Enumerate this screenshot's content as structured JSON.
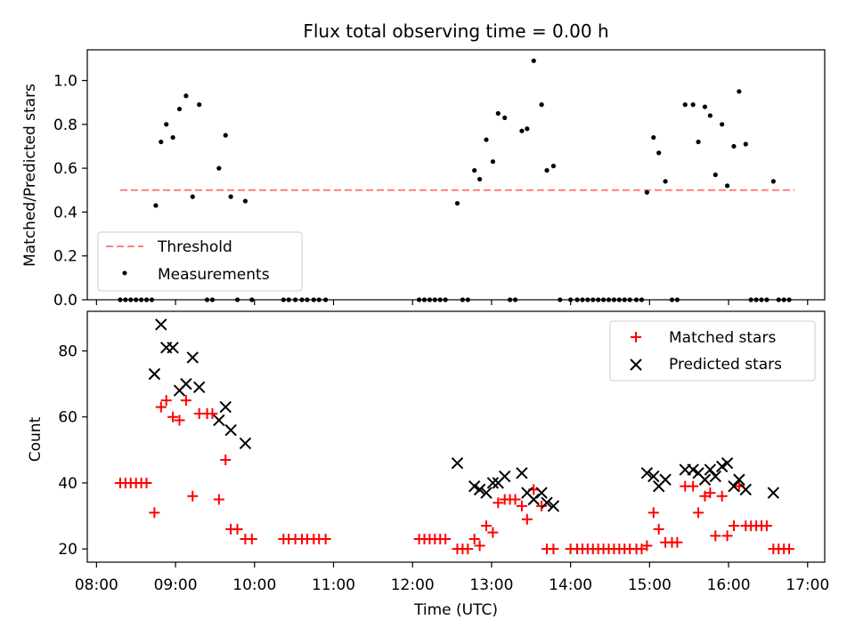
{
  "figure": {
    "title": "Flux total observing time = 0.00 h",
    "xlabel": "Time (UTC)",
    "x_tick_labels": [
      "08:00",
      "09:00",
      "10:00",
      "11:00",
      "12:00",
      "13:00",
      "14:00",
      "15:00",
      "16:00",
      "17:00"
    ]
  },
  "chart_data": [
    {
      "type": "scatter",
      "ylabel": "Matched/Predicted stars",
      "xlim": [
        "07:53",
        "17:13"
      ],
      "ylim": [
        0,
        1.14
      ],
      "y_ticks": [
        0,
        0.2,
        0.4,
        0.6,
        0.8,
        1.0
      ],
      "y_tick_labels": [
        "0.0",
        "0.2",
        "0.4",
        "0.6",
        "0.8",
        "1.0"
      ],
      "legend_position": "lower-left",
      "colors": {
        "threshold": "#ff7f7f",
        "measurements": "#000000"
      },
      "threshold": {
        "name": "Threshold",
        "y": 0.5,
        "x_range": [
          "08:18",
          "16:50"
        ]
      },
      "series": [
        {
          "name": "Measurements",
          "points": [
            [
              "08:18",
              0
            ],
            [
              "08:22",
              0
            ],
            [
              "08:26",
              0
            ],
            [
              "08:30",
              0
            ],
            [
              "08:34",
              0
            ],
            [
              "08:38",
              0
            ],
            [
              "08:42",
              0
            ],
            [
              "08:45",
              0.43
            ],
            [
              "08:49",
              0.72
            ],
            [
              "08:53",
              0.8
            ],
            [
              "08:58",
              0.74
            ],
            [
              "09:03",
              0.87
            ],
            [
              "09:08",
              0.93
            ],
            [
              "09:13",
              0.47
            ],
            [
              "09:18",
              0.89
            ],
            [
              "09:24",
              0
            ],
            [
              "09:28",
              0
            ],
            [
              "09:33",
              0.6
            ],
            [
              "09:38",
              0.75
            ],
            [
              "09:42",
              0.47
            ],
            [
              "09:47",
              0
            ],
            [
              "09:53",
              0.45
            ],
            [
              "09:58",
              0
            ],
            [
              "10:22",
              0
            ],
            [
              "10:26",
              0
            ],
            [
              "10:31",
              0
            ],
            [
              "10:36",
              0
            ],
            [
              "10:40",
              0
            ],
            [
              "10:45",
              0
            ],
            [
              "10:49",
              0
            ],
            [
              "10:54",
              0
            ],
            [
              "12:05",
              0
            ],
            [
              "12:09",
              0
            ],
            [
              "12:13",
              0
            ],
            [
              "12:17",
              0
            ],
            [
              "12:21",
              0
            ],
            [
              "12:25",
              0
            ],
            [
              "12:34",
              0.44
            ],
            [
              "12:38",
              0
            ],
            [
              "12:42",
              0
            ],
            [
              "12:47",
              0.59
            ],
            [
              "12:51",
              0.55
            ],
            [
              "12:56",
              0.73
            ],
            [
              "13:01",
              0.63
            ],
            [
              "13:05",
              0.85
            ],
            [
              "13:10",
              0.83
            ],
            [
              "13:14",
              0
            ],
            [
              "13:18",
              0
            ],
            [
              "13:23",
              0.77
            ],
            [
              "13:27",
              0.78
            ],
            [
              "13:32",
              1.09
            ],
            [
              "13:38",
              0.89
            ],
            [
              "13:42",
              0.59
            ],
            [
              "13:47",
              0.61
            ],
            [
              "13:52",
              0
            ],
            [
              "14:00",
              0
            ],
            [
              "14:05",
              0
            ],
            [
              "14:09",
              0
            ],
            [
              "14:13",
              0
            ],
            [
              "14:17",
              0
            ],
            [
              "14:21",
              0
            ],
            [
              "14:25",
              0
            ],
            [
              "14:29",
              0
            ],
            [
              "14:33",
              0
            ],
            [
              "14:37",
              0
            ],
            [
              "14:41",
              0
            ],
            [
              "14:45",
              0
            ],
            [
              "14:50",
              0
            ],
            [
              "14:54",
              0
            ],
            [
              "14:58",
              0.49
            ],
            [
              "15:03",
              0.74
            ],
            [
              "15:07",
              0.67
            ],
            [
              "15:12",
              0.54
            ],
            [
              "15:17",
              0
            ],
            [
              "15:21",
              0
            ],
            [
              "15:27",
              0.89
            ],
            [
              "15:33",
              0.89
            ],
            [
              "15:37",
              0.72
            ],
            [
              "15:42",
              0.88
            ],
            [
              "15:46",
              0.84
            ],
            [
              "15:50",
              0.57
            ],
            [
              "15:55",
              0.8
            ],
            [
              "15:59",
              0.52
            ],
            [
              "16:04",
              0.7
            ],
            [
              "16:08",
              0.95
            ],
            [
              "16:13",
              0.71
            ],
            [
              "16:17",
              0
            ],
            [
              "16:21",
              0
            ],
            [
              "16:25",
              0
            ],
            [
              "16:29",
              0
            ],
            [
              "16:34",
              0.54
            ],
            [
              "16:38",
              0
            ],
            [
              "16:42",
              0
            ],
            [
              "16:46",
              0
            ]
          ]
        }
      ]
    },
    {
      "type": "scatter",
      "ylabel": "Count",
      "xlim": [
        "07:53",
        "17:13"
      ],
      "ylim": [
        16,
        92
      ],
      "y_ticks": [
        20,
        40,
        60,
        80
      ],
      "y_tick_labels": [
        "20",
        "40",
        "60",
        "80"
      ],
      "legend_position": "top-right",
      "colors": {
        "matched": "#ff0000",
        "predicted": "#000000"
      },
      "series": [
        {
          "name": "Matched stars",
          "marker": "plus",
          "points": [
            [
              "08:18",
              40
            ],
            [
              "08:22",
              40
            ],
            [
              "08:26",
              40
            ],
            [
              "08:30",
              40
            ],
            [
              "08:34",
              40
            ],
            [
              "08:38",
              40
            ],
            [
              "08:44",
              31
            ],
            [
              "08:49",
              63
            ],
            [
              "08:53",
              65
            ],
            [
              "08:58",
              60
            ],
            [
              "09:03",
              59
            ],
            [
              "09:08",
              65
            ],
            [
              "09:13",
              36
            ],
            [
              "09:18",
              61
            ],
            [
              "09:24",
              61
            ],
            [
              "09:28",
              61
            ],
            [
              "09:33",
              35
            ],
            [
              "09:38",
              47
            ],
            [
              "09:42",
              26
            ],
            [
              "09:47",
              26
            ],
            [
              "09:53",
              23
            ],
            [
              "09:58",
              23
            ],
            [
              "10:22",
              23
            ],
            [
              "10:26",
              23
            ],
            [
              "10:31",
              23
            ],
            [
              "10:36",
              23
            ],
            [
              "10:40",
              23
            ],
            [
              "10:45",
              23
            ],
            [
              "10:49",
              23
            ],
            [
              "10:54",
              23
            ],
            [
              "12:05",
              23
            ],
            [
              "12:09",
              23
            ],
            [
              "12:13",
              23
            ],
            [
              "12:17",
              23
            ],
            [
              "12:21",
              23
            ],
            [
              "12:25",
              23
            ],
            [
              "12:34",
              20
            ],
            [
              "12:38",
              20
            ],
            [
              "12:42",
              20
            ],
            [
              "12:47",
              23
            ],
            [
              "12:51",
              21
            ],
            [
              "12:56",
              27
            ],
            [
              "13:01",
              25
            ],
            [
              "13:05",
              34
            ],
            [
              "13:10",
              35
            ],
            [
              "13:14",
              35
            ],
            [
              "13:18",
              35
            ],
            [
              "13:23",
              33
            ],
            [
              "13:27",
              29
            ],
            [
              "13:32",
              38
            ],
            [
              "13:38",
              33
            ],
            [
              "13:42",
              20
            ],
            [
              "13:47",
              20
            ],
            [
              "14:00",
              20
            ],
            [
              "14:05",
              20
            ],
            [
              "14:09",
              20
            ],
            [
              "14:13",
              20
            ],
            [
              "14:17",
              20
            ],
            [
              "14:21",
              20
            ],
            [
              "14:25",
              20
            ],
            [
              "14:29",
              20
            ],
            [
              "14:33",
              20
            ],
            [
              "14:37",
              20
            ],
            [
              "14:41",
              20
            ],
            [
              "14:45",
              20
            ],
            [
              "14:50",
              20
            ],
            [
              "14:54",
              20
            ],
            [
              "14:58",
              21
            ],
            [
              "15:03",
              31
            ],
            [
              "15:07",
              26
            ],
            [
              "15:12",
              22
            ],
            [
              "15:17",
              22
            ],
            [
              "15:21",
              22
            ],
            [
              "15:27",
              39
            ],
            [
              "15:33",
              39
            ],
            [
              "15:37",
              31
            ],
            [
              "15:42",
              36
            ],
            [
              "15:46",
              37
            ],
            [
              "15:50",
              24
            ],
            [
              "15:55",
              36
            ],
            [
              "15:59",
              24
            ],
            [
              "16:04",
              27
            ],
            [
              "16:08",
              39
            ],
            [
              "16:13",
              27
            ],
            [
              "16:17",
              27
            ],
            [
              "16:21",
              27
            ],
            [
              "16:25",
              27
            ],
            [
              "16:29",
              27
            ],
            [
              "16:34",
              20
            ],
            [
              "16:38",
              20
            ],
            [
              "16:42",
              20
            ],
            [
              "16:46",
              20
            ]
          ]
        },
        {
          "name": "Predicted stars",
          "marker": "cross",
          "points": [
            [
              "08:44",
              73
            ],
            [
              "08:49",
              88
            ],
            [
              "08:53",
              81
            ],
            [
              "08:58",
              81
            ],
            [
              "09:03",
              68
            ],
            [
              "09:08",
              70
            ],
            [
              "09:13",
              78
            ],
            [
              "09:18",
              69
            ],
            [
              "09:33",
              59
            ],
            [
              "09:38",
              63
            ],
            [
              "09:42",
              56
            ],
            [
              "09:53",
              52
            ],
            [
              "12:34",
              46
            ],
            [
              "12:47",
              39
            ],
            [
              "12:51",
              38
            ],
            [
              "12:56",
              37
            ],
            [
              "13:01",
              40
            ],
            [
              "13:05",
              40
            ],
            [
              "13:10",
              42
            ],
            [
              "13:23",
              43
            ],
            [
              "13:27",
              37
            ],
            [
              "13:32",
              35
            ],
            [
              "13:38",
              37
            ],
            [
              "13:42",
              34
            ],
            [
              "13:47",
              33
            ],
            [
              "14:58",
              43
            ],
            [
              "15:03",
              42
            ],
            [
              "15:07",
              39
            ],
            [
              "15:12",
              41
            ],
            [
              "15:27",
              44
            ],
            [
              "15:33",
              44
            ],
            [
              "15:37",
              43
            ],
            [
              "15:42",
              41
            ],
            [
              "15:46",
              44
            ],
            [
              "15:50",
              42
            ],
            [
              "15:55",
              45
            ],
            [
              "15:59",
              46
            ],
            [
              "16:04",
              39
            ],
            [
              "16:08",
              41
            ],
            [
              "16:13",
              38
            ],
            [
              "16:34",
              37
            ]
          ]
        }
      ]
    }
  ]
}
